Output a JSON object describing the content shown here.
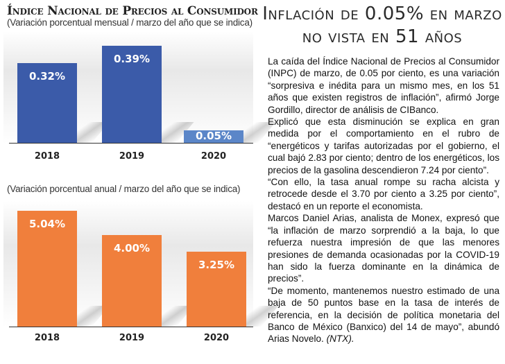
{
  "chart_section": {
    "title": "Índice Nacional de Precios al Consumidor"
  },
  "chart_data": [
    {
      "type": "bar",
      "title": "Índice Nacional de Precios al Consumidor",
      "subtitle": "(Variación porcentual mensual / marzo del año que se indica)",
      "categories": [
        "2018",
        "2019",
        "2020"
      ],
      "values": [
        0.32,
        0.39,
        0.05
      ],
      "data_labels": [
        "0.32%",
        "0.39%",
        "0.05%"
      ],
      "colors": [
        "#3b5ba9",
        "#3b5ba9",
        "#5b86c8"
      ],
      "xlabel": "",
      "ylabel": "",
      "ylim": [
        0,
        0.42
      ],
      "grid": false,
      "legend": "none"
    },
    {
      "type": "bar",
      "title": "",
      "subtitle": "(Variación porcentual anual / marzo del año que se indica)",
      "categories": [
        "2018",
        "2019",
        "2020"
      ],
      "values": [
        5.04,
        4.0,
        3.25
      ],
      "data_labels": [
        "5.04%",
        "4.00%",
        "3.25%"
      ],
      "colors": [
        "#f07f3c",
        "#f07f3c",
        "#f07f3c"
      ],
      "xlabel": "",
      "ylabel": "",
      "ylim": [
        0,
        5.4
      ],
      "grid": false,
      "legend": "none"
    }
  ],
  "article": {
    "headline": "Inflación de 0.05% en marzo no vista en 51 años",
    "paragraphs": [
      "La caída del Índice Nacional de Precios al Consumidor (INPC) de marzo, de 0.05 por ciento, es una variación “sorpresiva e inédita para un mismo mes, en los 51 años que existen registros de inflación”, afirmó Jorge Gordillo, director de análisis de CIBanco.",
      "Explicó que esta disminución se explica en gran medida por el comportamiento en el rubro de “energéticos y tarifas autorizadas por el gobierno, el cual bajó 2.83 por ciento; dentro de los energéticos, los precios de la gasolina descendieron 7.24 por ciento”.",
      "“Con ello, la tasa anual rompe su racha alcista y retrocede desde el 3.70 por ciento a 3.25 por ciento”, destacó en un reporte el economista.",
      "Marcos Daniel Arias, analista de Monex, expresó que “la inflación de marzo sorprendió a la baja, lo que refuerza nuestra impresión de que las menores presiones de demanda ocasionadas por la COVID-19 han sido la fuerza dominante en la dinámica de precios”.",
      "“De momento, mantenemos nuestro estimado de una baja de 50 puntos base en la tasa de interés de referencia, en la decisión de política monetaria del Banco de México (Banxico) del 14 de mayo”, abundó Arias Novelo."
    ],
    "credit": "(NTX)."
  }
}
